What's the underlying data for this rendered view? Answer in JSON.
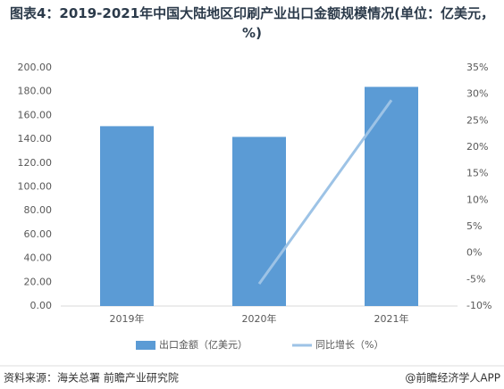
{
  "chart_data": {
    "type": "bar",
    "title": "图表4：2019-2021年中国大陆地区印刷产业出口金额规模情况(单位：亿美元，%)",
    "categories": [
      "2019年",
      "2020年",
      "2021年"
    ],
    "series": [
      {
        "name": "出口金额（亿美元）",
        "color": "#5b9bd5",
        "values": [
          151,
          142,
          184
        ]
      },
      {
        "name": "同比增长（%）",
        "color": "#9dc3e6",
        "type": "line",
        "axis": "y2",
        "values": [
          null,
          -5.8,
          28.9
        ]
      }
    ],
    "ylim": [
      0,
      200
    ],
    "yticks": [
      {
        "value": 0,
        "label": "0.00"
      },
      {
        "value": 20,
        "label": "20.00"
      },
      {
        "value": 40,
        "label": "40.00"
      },
      {
        "value": 60,
        "label": "60.00"
      },
      {
        "value": 80,
        "label": "80.00"
      },
      {
        "value": 100,
        "label": "100.00"
      },
      {
        "value": 120,
        "label": "120.00"
      },
      {
        "value": 140,
        "label": "140.00"
      },
      {
        "value": 160,
        "label": "160.00"
      },
      {
        "value": 180,
        "label": "180.00"
      },
      {
        "value": 200,
        "label": "200.00"
      }
    ],
    "y2lim": [
      -10,
      35
    ],
    "y2ticks": [
      {
        "value": -10,
        "label": "-10%"
      },
      {
        "value": -5,
        "label": "-5%"
      },
      {
        "value": 0,
        "label": "0%"
      },
      {
        "value": 5,
        "label": "5%"
      },
      {
        "value": 10,
        "label": "10%"
      },
      {
        "value": 15,
        "label": "15%"
      },
      {
        "value": 20,
        "label": "20%"
      },
      {
        "value": 25,
        "label": "25%"
      },
      {
        "value": 30,
        "label": "30%"
      },
      {
        "value": 35,
        "label": "35%"
      }
    ],
    "grid": false,
    "legend": "bottom",
    "source": "资料来源：海关总署 前瞻产业研究院",
    "credit": "@前瞻经济学人APP"
  }
}
